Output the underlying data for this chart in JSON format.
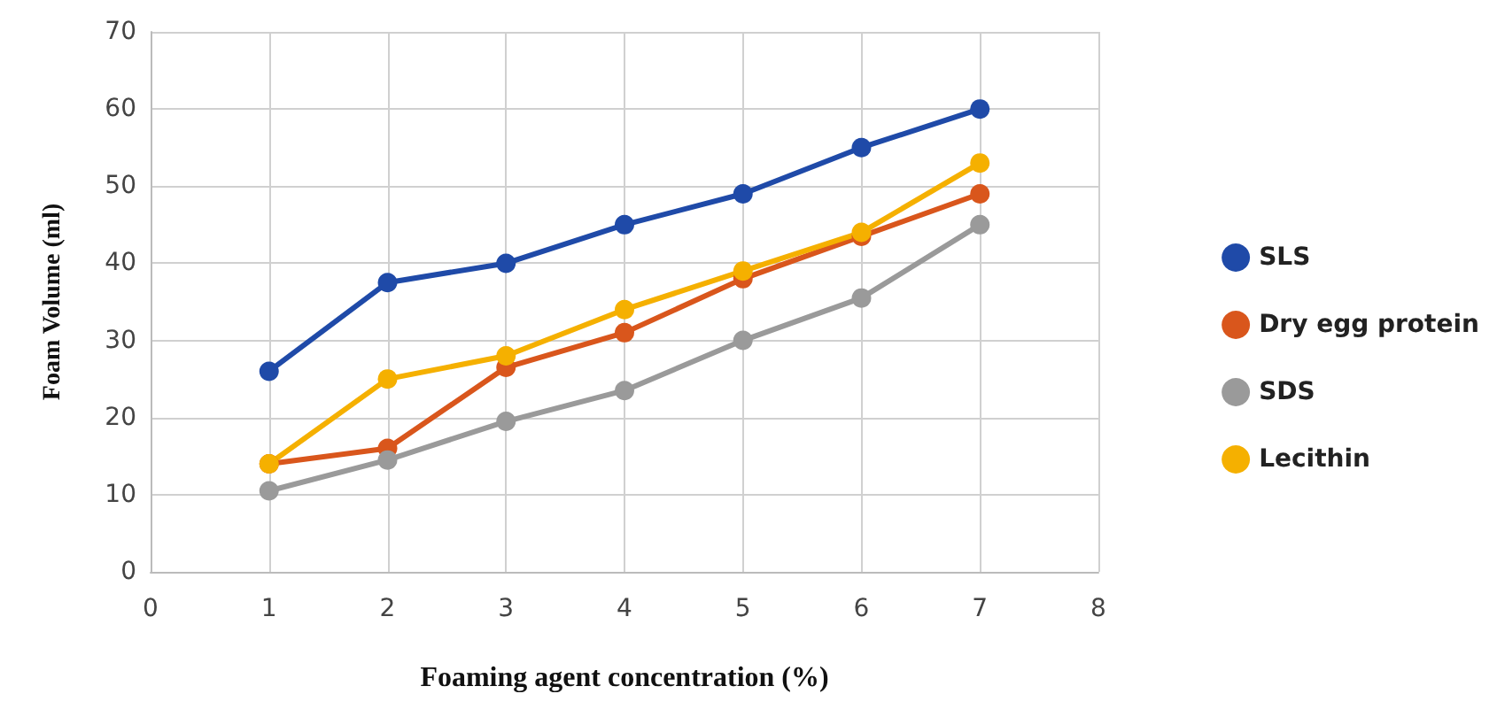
{
  "chart_data": {
    "type": "line",
    "xlabel": "Foaming agent concentration (%)",
    "ylabel": "Foam Volume (ml)",
    "x": [
      1,
      2,
      3,
      4,
      5,
      6,
      7
    ],
    "series": [
      {
        "name": "SLS",
        "color": "#1f4aa8",
        "values": [
          26,
          37.5,
          40,
          45,
          49,
          55,
          60
        ]
      },
      {
        "name": "Dry egg protein",
        "color": "#d9561c",
        "values": [
          14,
          16,
          26.5,
          31,
          38,
          43.5,
          49
        ]
      },
      {
        "name": "SDS",
        "color": "#9a9a9a",
        "values": [
          10.5,
          14.5,
          19.5,
          23.5,
          30,
          35.5,
          45
        ]
      },
      {
        "name": "Lecithin",
        "color": "#f5b000",
        "values": [
          14,
          25,
          28,
          34,
          39,
          44,
          53
        ]
      }
    ],
    "xlim": [
      0,
      8
    ],
    "xticks": [
      0,
      1,
      2,
      3,
      4,
      5,
      6,
      7,
      8
    ],
    "ylim": [
      0,
      70
    ],
    "yticks": [
      0,
      10,
      20,
      30,
      40,
      50,
      60,
      70
    ],
    "grid": true,
    "legend": "right",
    "marker": "circle",
    "line_style": "solid"
  }
}
